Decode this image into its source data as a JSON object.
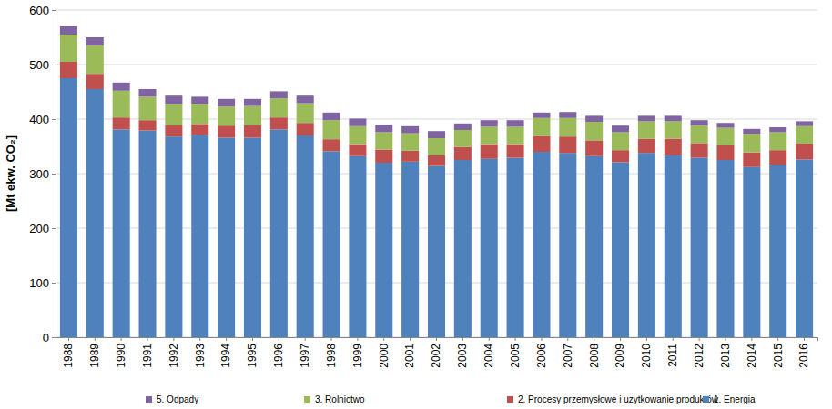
{
  "chart_data": {
    "type": "bar",
    "stacked": true,
    "grid": true,
    "legend": "bottom",
    "y_label": "[Mt ekw. CO₂]",
    "categories": [
      "1988",
      "1989",
      "1990",
      "1991",
      "1992",
      "1993",
      "1994",
      "1995",
      "1996",
      "1997",
      "1998",
      "1999",
      "2000",
      "2001",
      "2002",
      "2003",
      "2004",
      "2005",
      "2006",
      "2007",
      "2008",
      "2009",
      "2010",
      "2011",
      "2012",
      "2013",
      "2014",
      "2015",
      "2016"
    ],
    "ylim": [
      0,
      600
    ],
    "yticks": [
      0,
      100,
      200,
      300,
      400,
      500,
      600
    ],
    "series": [
      {
        "name": "1. Energia",
        "color": "#4f81bd",
        "values": [
          475,
          455,
          381,
          379,
          368,
          371,
          366,
          366,
          381,
          370,
          341,
          332,
          320,
          322,
          314,
          325,
          327,
          329,
          340,
          338,
          332,
          321,
          338,
          334,
          329,
          325,
          312,
          316,
          326
        ]
      },
      {
        "name": "2. Procesy przemysłowe i uzytkowanie produktów",
        "color": "#c0504d",
        "values": [
          30,
          28,
          22,
          19,
          21,
          20,
          22,
          23,
          22,
          23,
          22,
          22,
          24,
          20,
          20,
          24,
          27,
          25,
          29,
          30,
          29,
          22,
          26,
          30,
          27,
          27,
          27,
          27,
          29
        ]
      },
      {
        "name": "3. Rolnictwo",
        "color": "#9bbb59",
        "values": [
          50,
          52,
          49,
          43,
          39,
          37,
          35,
          35,
          35,
          36,
          35,
          33,
          32,
          32,
          31,
          31,
          32,
          32,
          33,
          34,
          34,
          33,
          32,
          32,
          32,
          32,
          34,
          33,
          32
        ]
      },
      {
        "name": "5. Odpady",
        "color": "#8064a2",
        "values": [
          15,
          15,
          15,
          14,
          15,
          13,
          14,
          13,
          13,
          14,
          14,
          14,
          14,
          13,
          13,
          12,
          12,
          12,
          10,
          11,
          11,
          12,
          10,
          10,
          10,
          9,
          9,
          9,
          9
        ]
      }
    ]
  }
}
